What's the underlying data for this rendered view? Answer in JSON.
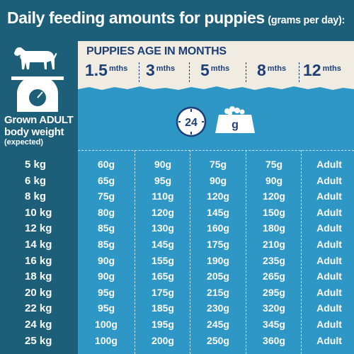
{
  "title": {
    "main": "Daily feeding amounts for puppies",
    "sub": "(grams per day):"
  },
  "left": {
    "line1": "Grown ADULT",
    "line2": "body weight",
    "line3": "(expected)"
  },
  "header": {
    "title": "PUPPIES AGE IN MONTHS",
    "ages": [
      {
        "num": "1.5",
        "unit": "mths"
      },
      {
        "num": "3",
        "unit": "mths"
      },
      {
        "num": "5",
        "unit": "mths"
      },
      {
        "num": "8",
        "unit": "mths"
      },
      {
        "num": "12",
        "unit": "mths"
      }
    ]
  },
  "icons": {
    "clock": "24",
    "bowl": "g"
  },
  "colors": {
    "background": "#1d5f78",
    "panel": "#2f97c5",
    "header": "#f0ece2",
    "header_text": "#1d3e77"
  },
  "rows": [
    {
      "w": "5 kg",
      "v": [
        "60g",
        "90g",
        "75g",
        "75g",
        "Adult"
      ]
    },
    {
      "w": "6 kg",
      "v": [
        "65g",
        "95g",
        "90g",
        "90g",
        "Adult"
      ]
    },
    {
      "w": "8 kg",
      "v": [
        "75g",
        "110g",
        "120g",
        "120g",
        "Adult"
      ]
    },
    {
      "w": "10 kg",
      "v": [
        "80g",
        "120g",
        "145g",
        "150g",
        "Adult"
      ]
    },
    {
      "w": "12 kg",
      "v": [
        "85g",
        "130g",
        "160g",
        "180g",
        "Adult"
      ]
    },
    {
      "w": "14 kg",
      "v": [
        "85g",
        "145g",
        "175g",
        "210g",
        "Adult"
      ]
    },
    {
      "w": "16 kg",
      "v": [
        "90g",
        "155g",
        "190g",
        "235g",
        "Adult"
      ]
    },
    {
      "w": "18 kg",
      "v": [
        "90g",
        "165g",
        "205g",
        "265g",
        "Adult"
      ]
    },
    {
      "w": "20 kg",
      "v": [
        "95g",
        "175g",
        "215g",
        "295g",
        "Adult"
      ]
    },
    {
      "w": "22 kg",
      "v": [
        "95g",
        "185g",
        "230g",
        "320g",
        "Adult"
      ]
    },
    {
      "w": "24 kg",
      "v": [
        "100g",
        "195g",
        "245g",
        "345g",
        "Adult"
      ]
    },
    {
      "w": "25 kg",
      "v": [
        "100g",
        "200g",
        "250g",
        "360g",
        "Adult"
      ]
    }
  ]
}
